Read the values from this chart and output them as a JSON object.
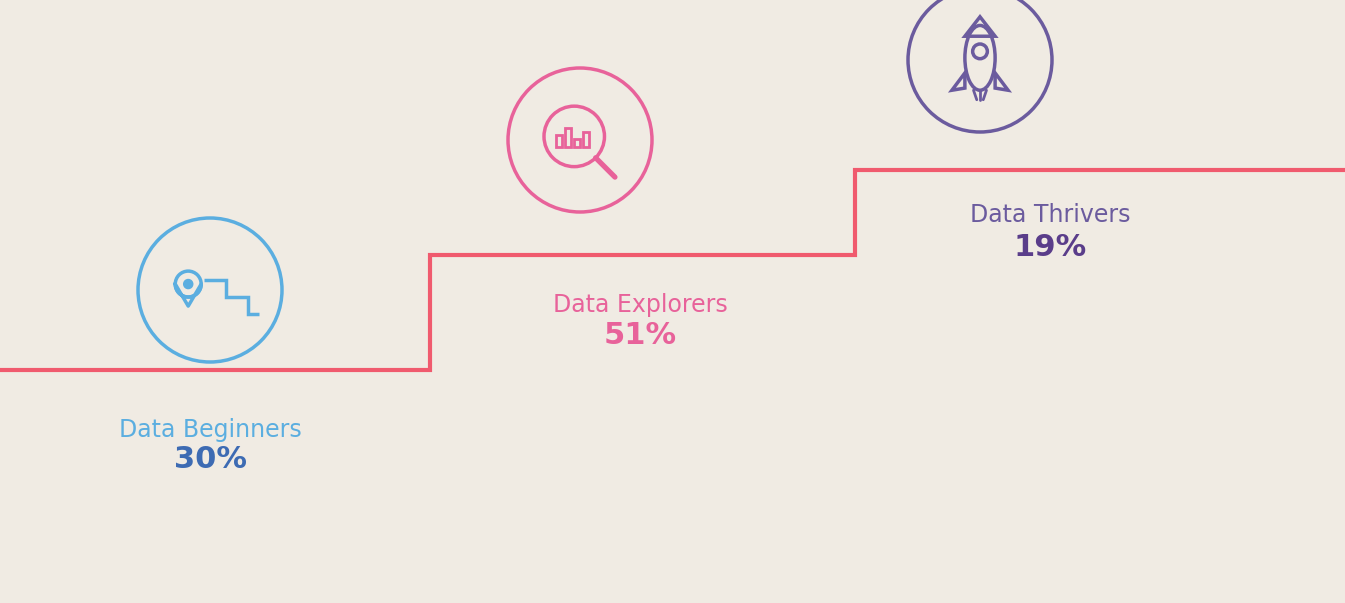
{
  "background_color": "#f0ebe3",
  "line_color": "#f05a6e",
  "line_width": 3.0,
  "categories": [
    "Data Beginners",
    "Data Explorers",
    "Data Thrivers"
  ],
  "percentages": [
    "30%",
    "51%",
    "19%"
  ],
  "label_colors": [
    "#5baee0",
    "#e8629a",
    "#6b5b9e"
  ],
  "pct_colors": [
    "#3d6bb3",
    "#e8629a",
    "#5a3d8a"
  ],
  "icon_colors": [
    "#5baee0",
    "#e8629a",
    "#6b5b9e"
  ],
  "label_fontsize": 17,
  "pct_fontsize": 22,
  "figsize": [
    13.45,
    6.03
  ],
  "dpi": 100
}
